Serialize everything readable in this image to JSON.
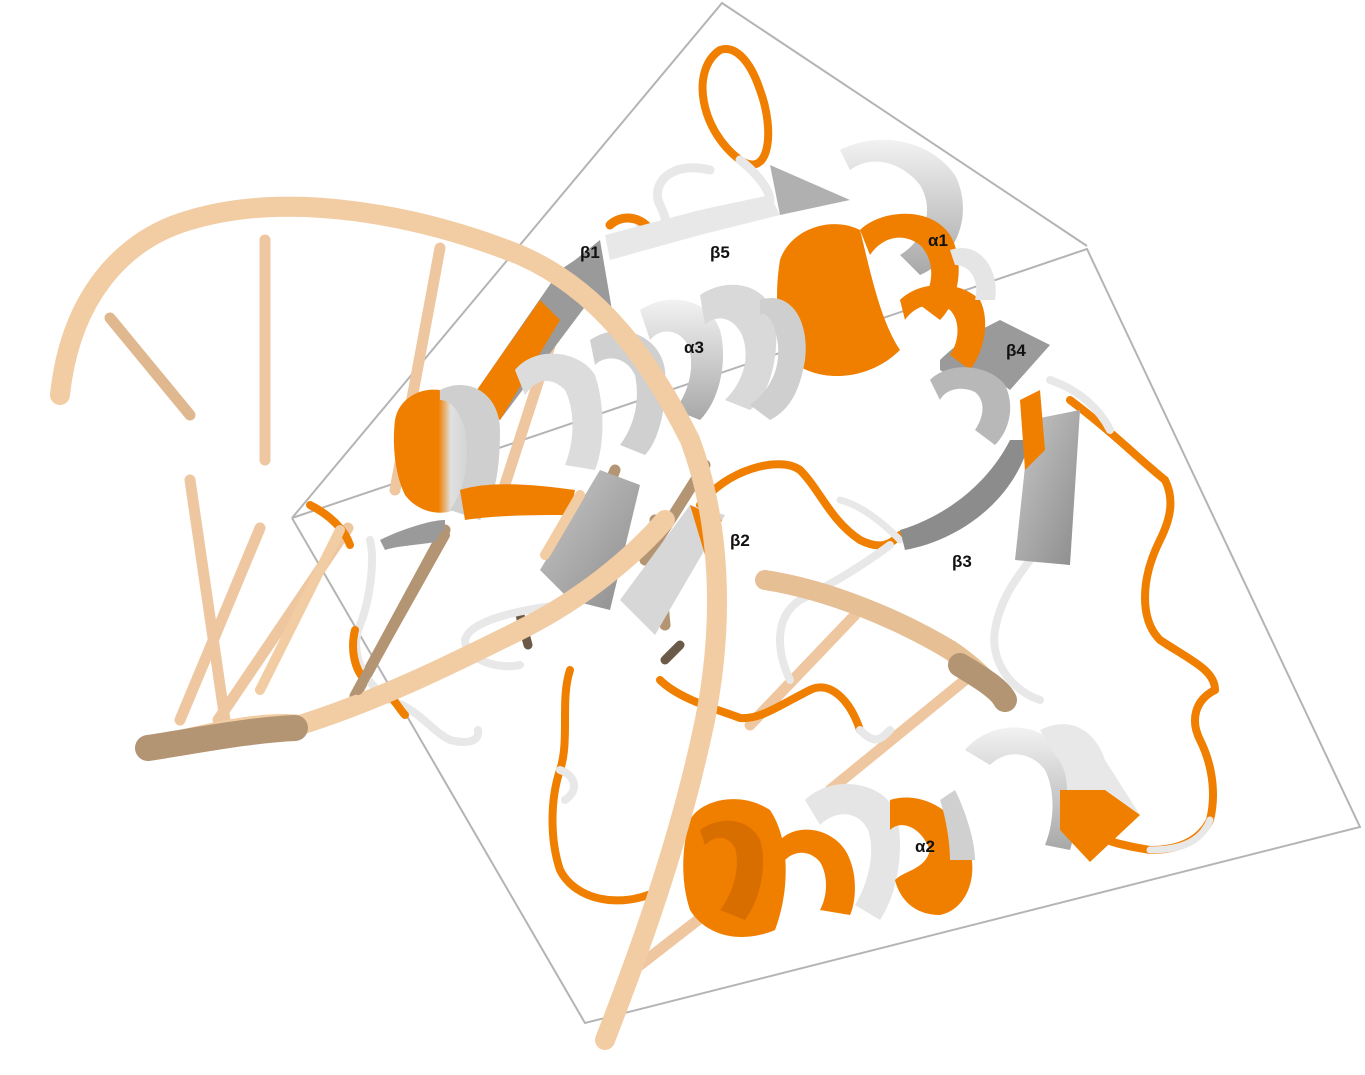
{
  "figure": {
    "subject": "protein-dna-complex-ribbon",
    "colors": {
      "dna_light": "#f2cca2",
      "dna_dark": "#b39473",
      "helix_orange": "#f07f00",
      "helix_gray": "#cfcfcf",
      "strand_gray": "#9a9a9a",
      "coil_white": "#e8e8e8",
      "box_line": "#b4b4b4"
    },
    "labels": {
      "alpha1": "α1",
      "alpha2": "α2",
      "alpha3": "α3",
      "beta1": "β1",
      "beta2": "β2",
      "beta3": "β3",
      "beta4": "β4",
      "beta5": "β5"
    }
  }
}
